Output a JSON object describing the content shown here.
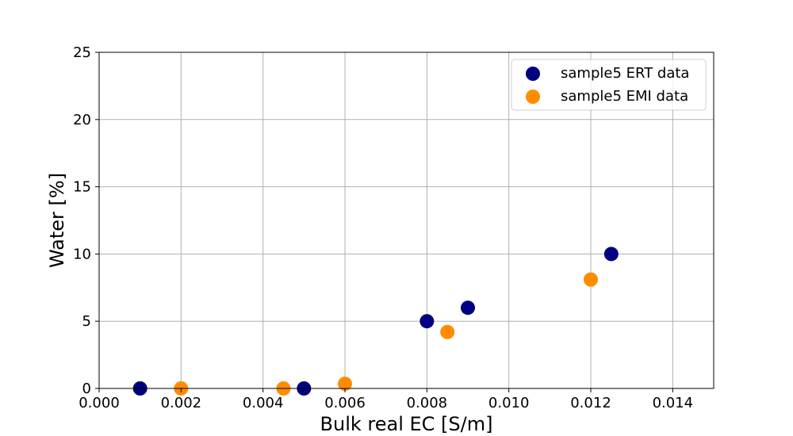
{
  "chart_data": {
    "type": "scatter",
    "title": "",
    "xlabel": "Bulk real EC [S/m]",
    "ylabel": "Water [%]",
    "xlim": [
      0,
      0.015
    ],
    "ylim": [
      0,
      25
    ],
    "xticks": [
      0.0,
      0.002,
      0.004,
      0.006,
      0.008,
      0.01,
      0.012,
      0.014
    ],
    "xtick_labels": [
      "0.000",
      "0.002",
      "0.004",
      "0.006",
      "0.008",
      "0.010",
      "0.012",
      "0.014"
    ],
    "yticks": [
      0,
      5,
      10,
      15,
      20,
      25
    ],
    "ytick_labels": [
      "0",
      "5",
      "10",
      "15",
      "20",
      "25"
    ],
    "grid": true,
    "legend_position": "top-right",
    "series": [
      {
        "name": "sample5 ERT data",
        "color": "#000080",
        "x": [
          0.001,
          0.005,
          0.008,
          0.009,
          0.0125
        ],
        "y": [
          0,
          0,
          5,
          6,
          10
        ]
      },
      {
        "name": "sample5 EMI data",
        "color": "#ff8c00",
        "x": [
          0.002,
          0.0045,
          0.006,
          0.0085,
          0.012
        ],
        "y": [
          0,
          0,
          0.35,
          4.2,
          8.1
        ]
      }
    ]
  }
}
